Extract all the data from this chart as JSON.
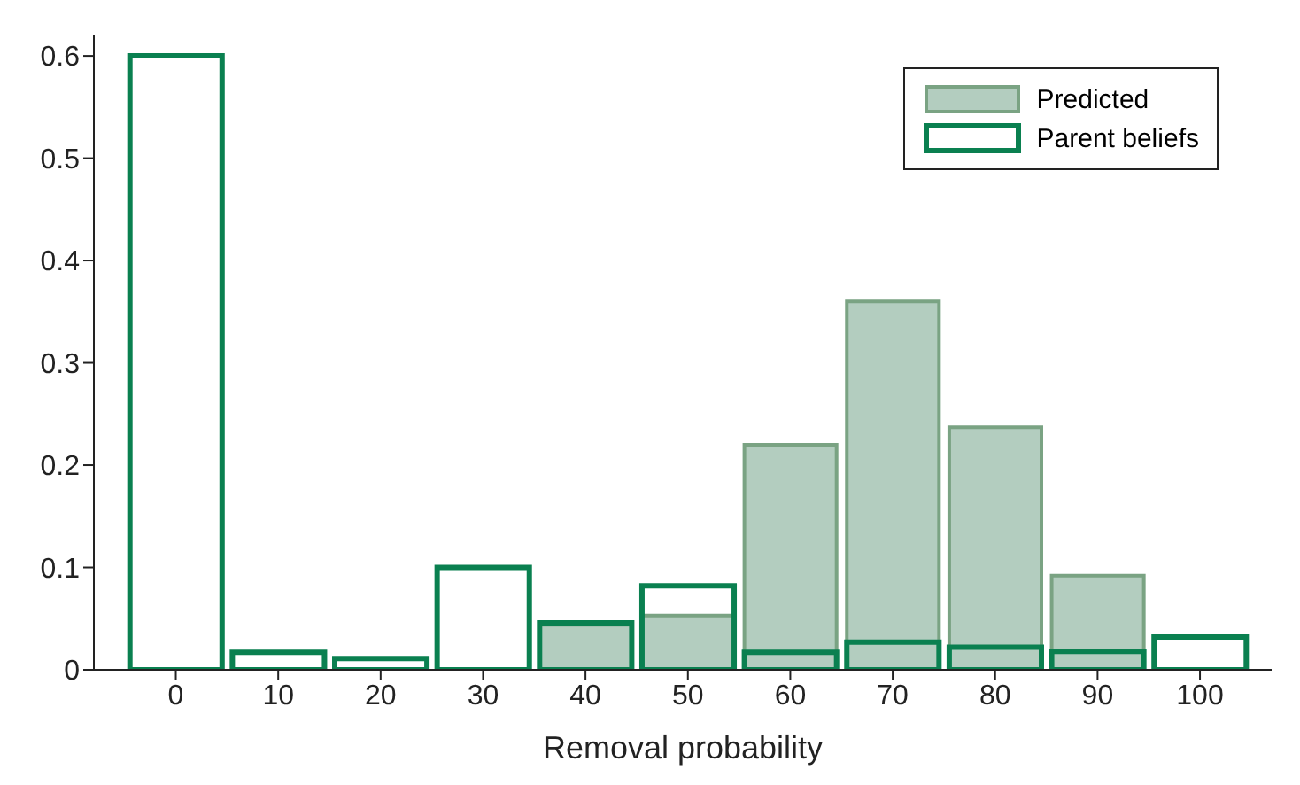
{
  "chart_data": {
    "type": "histogram",
    "xlabel": "Removal probability",
    "bins": [
      -5,
      5,
      15,
      25,
      35,
      45,
      55,
      65,
      75,
      85,
      95,
      105
    ],
    "series": [
      {
        "name": "Predicted",
        "color": "#b3cdbf",
        "values": [
          0,
          0,
          0,
          0,
          0.044,
          0.053,
          0.22,
          0.36,
          0.237,
          0.092,
          0
        ]
      },
      {
        "name": "Parent beliefs",
        "color": "#0a8050",
        "values": [
          0.6,
          0.017,
          0.011,
          0.1,
          0.046,
          0.082,
          0.017,
          0.027,
          0.022,
          0.018,
          0.032
        ]
      }
    ],
    "xlim": [
      -8,
      107
    ],
    "xticks": [
      0,
      10,
      20,
      30,
      40,
      50,
      60,
      70,
      80,
      90,
      100
    ],
    "ylim": [
      0,
      0.62
    ],
    "yticks": [
      0,
      0.1,
      0.2,
      0.3,
      0.4,
      0.5,
      0.6
    ],
    "grid": false,
    "legend": "top right"
  }
}
